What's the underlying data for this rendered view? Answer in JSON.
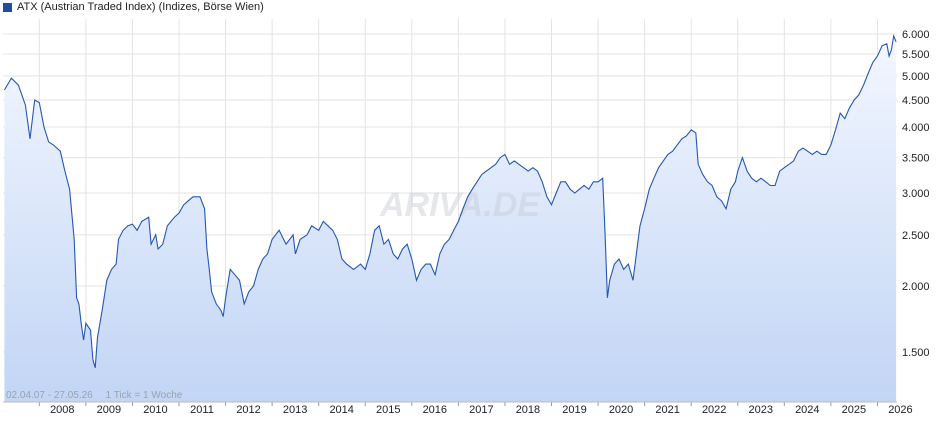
{
  "legend": {
    "label": "ATX (Austrian Traded Index) (Indizes, Börse Wien)"
  },
  "watermark": "ARIVA.DE",
  "info": {
    "range": "02.04.07 - 27.05.26",
    "tick": "1 Tick = 1 Woche"
  },
  "colors": {
    "line": "#2457b3",
    "fill_top": "#f3f7ff",
    "fill_bottom": "#c2d5f5",
    "grid": "#e3e3e3",
    "legend_box": "#1f4e9e"
  },
  "chart_data": {
    "type": "area",
    "scale": "log",
    "legend": [
      "ATX (Austrian Traded Index) (Indizes, Börse Wien)"
    ],
    "y_ticks": [
      1500,
      2000,
      2500,
      3000,
      3500,
      4000,
      4500,
      5000,
      5500,
      6000
    ],
    "y_tick_labels": [
      "1.500",
      "2.000",
      "2.500",
      "3.000",
      "3.500",
      "4.000",
      "4.500",
      "5.000",
      "5.500",
      "6.000"
    ],
    "x_ticks": [
      "2008",
      "2009",
      "2010",
      "2011",
      "2012",
      "2013",
      "2014",
      "2015",
      "2016",
      "2017",
      "2018",
      "2019",
      "2020",
      "2021",
      "2022",
      "2023",
      "2024",
      "2025",
      "2026"
    ],
    "series": [
      {
        "name": "ATX (Austrian Traded Index) (Indizes, Börse Wien)",
        "points": [
          [
            2007.25,
            4700
          ],
          [
            2007.4,
            4950
          ],
          [
            2007.55,
            4800
          ],
          [
            2007.7,
            4400
          ],
          [
            2007.8,
            3800
          ],
          [
            2007.9,
            4500
          ],
          [
            2008.0,
            4450
          ],
          [
            2008.1,
            4000
          ],
          [
            2008.2,
            3750
          ],
          [
            2008.3,
            3700
          ],
          [
            2008.45,
            3600
          ],
          [
            2008.55,
            3300
          ],
          [
            2008.65,
            3050
          ],
          [
            2008.75,
            2450
          ],
          [
            2008.8,
            1900
          ],
          [
            2008.85,
            1850
          ],
          [
            2008.9,
            1700
          ],
          [
            2008.95,
            1580
          ],
          [
            2009.0,
            1700
          ],
          [
            2009.1,
            1650
          ],
          [
            2009.15,
            1450
          ],
          [
            2009.2,
            1400
          ],
          [
            2009.25,
            1600
          ],
          [
            2009.35,
            1800
          ],
          [
            2009.45,
            2050
          ],
          [
            2009.55,
            2150
          ],
          [
            2009.65,
            2200
          ],
          [
            2009.7,
            2450
          ],
          [
            2009.8,
            2550
          ],
          [
            2009.9,
            2600
          ],
          [
            2010.0,
            2620
          ],
          [
            2010.1,
            2550
          ],
          [
            2010.2,
            2650
          ],
          [
            2010.35,
            2700
          ],
          [
            2010.4,
            2400
          ],
          [
            2010.5,
            2500
          ],
          [
            2010.55,
            2350
          ],
          [
            2010.65,
            2400
          ],
          [
            2010.75,
            2600
          ],
          [
            2010.9,
            2700
          ],
          [
            2011.0,
            2750
          ],
          [
            2011.1,
            2850
          ],
          [
            2011.2,
            2900
          ],
          [
            2011.3,
            2950
          ],
          [
            2011.45,
            2950
          ],
          [
            2011.55,
            2800
          ],
          [
            2011.6,
            2350
          ],
          [
            2011.65,
            2150
          ],
          [
            2011.7,
            1950
          ],
          [
            2011.8,
            1850
          ],
          [
            2011.9,
            1800
          ],
          [
            2011.95,
            1750
          ],
          [
            2012.0,
            1900
          ],
          [
            2012.1,
            2150
          ],
          [
            2012.2,
            2100
          ],
          [
            2012.3,
            2050
          ],
          [
            2012.4,
            1850
          ],
          [
            2012.5,
            1950
          ],
          [
            2012.6,
            2000
          ],
          [
            2012.7,
            2150
          ],
          [
            2012.8,
            2250
          ],
          [
            2012.9,
            2300
          ],
          [
            2013.0,
            2450
          ],
          [
            2013.15,
            2550
          ],
          [
            2013.3,
            2400
          ],
          [
            2013.45,
            2500
          ],
          [
            2013.5,
            2300
          ],
          [
            2013.6,
            2450
          ],
          [
            2013.75,
            2500
          ],
          [
            2013.85,
            2600
          ],
          [
            2014.0,
            2550
          ],
          [
            2014.1,
            2650
          ],
          [
            2014.2,
            2600
          ],
          [
            2014.3,
            2550
          ],
          [
            2014.4,
            2450
          ],
          [
            2014.5,
            2250
          ],
          [
            2014.6,
            2200
          ],
          [
            2014.75,
            2150
          ],
          [
            2014.9,
            2200
          ],
          [
            2015.0,
            2150
          ],
          [
            2015.1,
            2300
          ],
          [
            2015.2,
            2550
          ],
          [
            2015.3,
            2600
          ],
          [
            2015.4,
            2400
          ],
          [
            2015.5,
            2450
          ],
          [
            2015.6,
            2300
          ],
          [
            2015.7,
            2250
          ],
          [
            2015.8,
            2350
          ],
          [
            2015.9,
            2400
          ],
          [
            2016.0,
            2250
          ],
          [
            2016.1,
            2050
          ],
          [
            2016.2,
            2150
          ],
          [
            2016.3,
            2200
          ],
          [
            2016.4,
            2200
          ],
          [
            2016.5,
            2100
          ],
          [
            2016.6,
            2300
          ],
          [
            2016.7,
            2400
          ],
          [
            2016.8,
            2450
          ],
          [
            2016.9,
            2550
          ],
          [
            2017.0,
            2650
          ],
          [
            2017.1,
            2800
          ],
          [
            2017.2,
            2950
          ],
          [
            2017.3,
            3050
          ],
          [
            2017.4,
            3150
          ],
          [
            2017.5,
            3250
          ],
          [
            2017.6,
            3300
          ],
          [
            2017.7,
            3350
          ],
          [
            2017.8,
            3400
          ],
          [
            2017.9,
            3500
          ],
          [
            2018.0,
            3550
          ],
          [
            2018.1,
            3400
          ],
          [
            2018.2,
            3450
          ],
          [
            2018.3,
            3400
          ],
          [
            2018.4,
            3350
          ],
          [
            2018.5,
            3300
          ],
          [
            2018.6,
            3350
          ],
          [
            2018.7,
            3300
          ],
          [
            2018.8,
            3150
          ],
          [
            2018.9,
            2950
          ],
          [
            2019.0,
            2850
          ],
          [
            2019.1,
            3000
          ],
          [
            2019.2,
            3150
          ],
          [
            2019.3,
            3150
          ],
          [
            2019.4,
            3050
          ],
          [
            2019.5,
            3000
          ],
          [
            2019.6,
            3050
          ],
          [
            2019.7,
            3100
          ],
          [
            2019.8,
            3050
          ],
          [
            2019.9,
            3150
          ],
          [
            2020.0,
            3150
          ],
          [
            2020.1,
            3200
          ],
          [
            2020.15,
            2500
          ],
          [
            2020.2,
            1900
          ],
          [
            2020.25,
            2050
          ],
          [
            2020.35,
            2200
          ],
          [
            2020.45,
            2250
          ],
          [
            2020.55,
            2150
          ],
          [
            2020.65,
            2200
          ],
          [
            2020.75,
            2050
          ],
          [
            2020.85,
            2400
          ],
          [
            2020.9,
            2600
          ],
          [
            2021.0,
            2800
          ],
          [
            2021.1,
            3050
          ],
          [
            2021.2,
            3200
          ],
          [
            2021.3,
            3350
          ],
          [
            2021.4,
            3450
          ],
          [
            2021.5,
            3550
          ],
          [
            2021.6,
            3600
          ],
          [
            2021.7,
            3700
          ],
          [
            2021.8,
            3800
          ],
          [
            2021.9,
            3850
          ],
          [
            2022.0,
            3950
          ],
          [
            2022.1,
            3900
          ],
          [
            2022.15,
            3400
          ],
          [
            2022.25,
            3250
          ],
          [
            2022.35,
            3150
          ],
          [
            2022.45,
            3100
          ],
          [
            2022.55,
            2950
          ],
          [
            2022.65,
            2900
          ],
          [
            2022.75,
            2800
          ],
          [
            2022.85,
            3050
          ],
          [
            2022.95,
            3150
          ],
          [
            2023.0,
            3300
          ],
          [
            2023.1,
            3500
          ],
          [
            2023.2,
            3300
          ],
          [
            2023.3,
            3200
          ],
          [
            2023.4,
            3150
          ],
          [
            2023.5,
            3200
          ],
          [
            2023.6,
            3150
          ],
          [
            2023.7,
            3100
          ],
          [
            2023.8,
            3100
          ],
          [
            2023.9,
            3300
          ],
          [
            2024.0,
            3350
          ],
          [
            2024.1,
            3400
          ],
          [
            2024.2,
            3450
          ],
          [
            2024.3,
            3600
          ],
          [
            2024.4,
            3650
          ],
          [
            2024.5,
            3600
          ],
          [
            2024.6,
            3550
          ],
          [
            2024.7,
            3600
          ],
          [
            2024.8,
            3550
          ],
          [
            2024.9,
            3550
          ],
          [
            2025.0,
            3700
          ],
          [
            2025.1,
            3950
          ],
          [
            2025.2,
            4250
          ],
          [
            2025.3,
            4150
          ],
          [
            2025.4,
            4350
          ],
          [
            2025.5,
            4500
          ],
          [
            2025.6,
            4600
          ],
          [
            2025.7,
            4800
          ],
          [
            2025.8,
            5050
          ],
          [
            2025.9,
            5300
          ],
          [
            2026.0,
            5450
          ],
          [
            2026.1,
            5700
          ],
          [
            2026.2,
            5750
          ],
          [
            2026.25,
            5450
          ],
          [
            2026.3,
            5600
          ],
          [
            2026.35,
            5950
          ],
          [
            2026.4,
            5800
          ]
        ]
      }
    ]
  }
}
